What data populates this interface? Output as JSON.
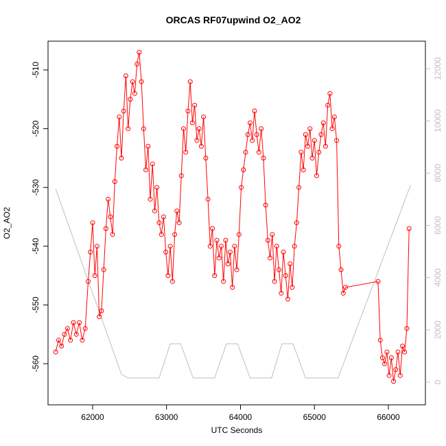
{
  "chart_data": {
    "type": "line",
    "title": "ORCAS RF07upwind O2_AO2",
    "x_label": "UTC Seconds",
    "y_label": "O2_AO2",
    "xlim": [
      61397,
      66501
    ],
    "xticks": [
      62000,
      63000,
      64000,
      65000,
      66000
    ],
    "ylim": [
      -567.0,
      -505.1
    ],
    "yticks": [
      -560,
      -550,
      -540,
      -530,
      -520,
      -510
    ],
    "y2lim": [
      -867,
      13050
    ],
    "y2ticks": [
      0,
      2000,
      4000,
      6000,
      8000,
      10000,
      12000
    ],
    "series": [
      {
        "color": "#ff0000",
        "markers": true,
        "x": [
          61500,
          61540,
          61580,
          61620,
          61660,
          61700,
          61740,
          61780,
          61820,
          61860,
          61900,
          61940,
          61970,
          62000,
          62030,
          62060,
          62090,
          62120,
          62150,
          62180,
          62210,
          62240,
          62270,
          62300,
          62330,
          62360,
          62390,
          62420,
          62450,
          62480,
          62510,
          62540,
          62570,
          62600,
          62630,
          62660,
          62690,
          62720,
          62750,
          62780,
          62810,
          62840,
          62870,
          62900,
          62930,
          62960,
          62990,
          63020,
          63050,
          63080,
          63110,
          63140,
          63170,
          63200,
          63230,
          63260,
          63290,
          63320,
          63350,
          63380,
          63410,
          63440,
          63470,
          63500,
          63530,
          63560,
          63590,
          63620,
          63650,
          63680,
          63710,
          63740,
          63770,
          63800,
          63830,
          63860,
          63890,
          63920,
          63950,
          63980,
          64010,
          64040,
          64070,
          64100,
          64130,
          64160,
          64190,
          64220,
          64250,
          64280,
          64310,
          64340,
          64370,
          64400,
          64430,
          64460,
          64490,
          64520,
          64550,
          64580,
          64610,
          64640,
          64670,
          64700,
          64730,
          64760,
          64790,
          64820,
          64850,
          64880,
          64910,
          64940,
          64970,
          65000,
          65030,
          65060,
          65090,
          65120,
          65150,
          65180,
          65210,
          65240,
          65270,
          65300,
          65330,
          65360,
          65390,
          65420,
          65860,
          65890,
          65920,
          65950,
          65980,
          66010,
          66040,
          66070,
          66100,
          66130,
          66160,
          66190,
          66220,
          66250,
          66280
        ],
        "values": [
          -558,
          -556,
          -557,
          -555,
          -554,
          -556,
          -553,
          -555,
          -553,
          -556,
          -554,
          -546,
          -541,
          -536,
          -545,
          -540,
          -552,
          -551,
          -544,
          -537,
          -532,
          -535,
          -538,
          -529,
          -523,
          -518,
          -525,
          -517,
          -511,
          -520,
          -515,
          -512,
          -514,
          -509,
          -507,
          -512,
          -520,
          -527,
          -523,
          -532,
          -526,
          -534,
          -530,
          -536,
          -538,
          -535,
          -541,
          -545,
          -540,
          -546,
          -538,
          -534,
          -536,
          -528,
          -520,
          -524,
          -517,
          -512,
          -519,
          -516,
          -522,
          -520,
          -523,
          -518,
          -525,
          -532,
          -540,
          -537,
          -545,
          -539,
          -542,
          -540,
          -546,
          -539,
          -543,
          -541,
          -547,
          -540,
          -544,
          -538,
          -530,
          -527,
          -524,
          -521,
          -519,
          -522,
          -517,
          -521,
          -524,
          -520,
          -525,
          -533,
          -539,
          -542,
          -538,
          -546,
          -540,
          -544,
          -548,
          -541,
          -545,
          -549,
          -543,
          -547,
          -540,
          -536,
          -530,
          -524,
          -527,
          -521,
          -523,
          -520,
          -525,
          -522,
          -528,
          -524,
          -521,
          -519,
          -523,
          -516,
          -514,
          -520,
          -518,
          -522,
          -540,
          -544,
          -548,
          -547,
          -546,
          -556,
          -559,
          -560,
          -558,
          -562,
          -559,
          -563,
          -561,
          -558,
          -562,
          -557,
          -558,
          -554,
          -537
        ]
      },
      {
        "color": "#bebebe",
        "axis": "y2",
        "markers": false,
        "x": [
          61500,
          62390,
          62480,
          62900,
          63050,
          63190,
          63360,
          63650,
          63810,
          63960,
          64130,
          64420,
          64560,
          64710,
          64880,
          65320,
          66300
        ],
        "values": [
          7400,
          300,
          160,
          160,
          1470,
          1470,
          160,
          160,
          1470,
          1470,
          160,
          160,
          1470,
          1470,
          160,
          160,
          7540
        ]
      }
    ]
  }
}
